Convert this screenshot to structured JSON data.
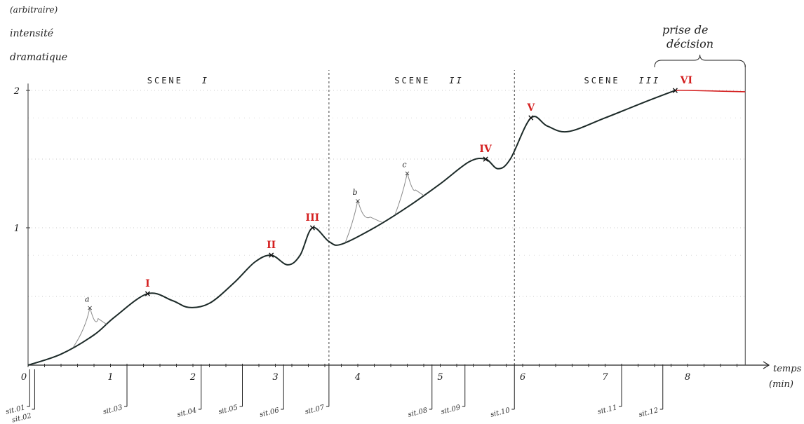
{
  "chart_data": {
    "type": "line",
    "ylabel_lines": [
      "(arbitraire)",
      "intensité",
      "dramatique"
    ],
    "xlabel": "temps",
    "xunit": "(min)",
    "xlim": [
      0,
      8.7
    ],
    "ylim": [
      0,
      2.05
    ],
    "x_ticks": [
      "0",
      "1",
      "2",
      "3",
      "4",
      "5",
      "6",
      "7",
      "8"
    ],
    "y_ticks": [
      "1",
      "2"
    ],
    "grid": "horizontal-dotted",
    "scene_boundaries": [
      3.65,
      5.9
    ],
    "scenes": [
      {
        "label": "SCENE",
        "num": "I",
        "x": 1.7
      },
      {
        "label": "SCENE",
        "num": "II",
        "x": 4.7
      },
      {
        "label": "SCENE",
        "num": "III",
        "x": 7.0
      }
    ],
    "annotation": {
      "label_lines": [
        "prise de",
        "décision"
      ],
      "x_start": 7.6,
      "x_end": 8.7
    },
    "main_curve": [
      [
        0,
        0
      ],
      [
        0.4,
        0.08
      ],
      [
        0.8,
        0.22
      ],
      [
        1.05,
        0.35
      ],
      [
        1.45,
        0.52
      ],
      [
        1.75,
        0.47
      ],
      [
        1.95,
        0.42
      ],
      [
        2.2,
        0.45
      ],
      [
        2.5,
        0.6
      ],
      [
        2.75,
        0.75
      ],
      [
        2.95,
        0.8
      ],
      [
        3.15,
        0.73
      ],
      [
        3.3,
        0.8
      ],
      [
        3.45,
        1.0
      ],
      [
        3.65,
        0.9
      ],
      [
        3.8,
        0.88
      ],
      [
        4.2,
        1.0
      ],
      [
        4.6,
        1.15
      ],
      [
        5.0,
        1.32
      ],
      [
        5.35,
        1.48
      ],
      [
        5.55,
        1.5
      ],
      [
        5.7,
        1.43
      ],
      [
        5.85,
        1.5
      ],
      [
        6.1,
        1.8
      ],
      [
        6.3,
        1.74
      ],
      [
        6.55,
        1.7
      ],
      [
        7.0,
        1.8
      ],
      [
        7.5,
        1.92
      ],
      [
        7.85,
        2.0
      ],
      [
        8.0,
        2.0
      ],
      [
        8.7,
        1.99
      ]
    ],
    "side_peaks": [
      {
        "label": "a",
        "base_x": 0.55,
        "x": 0.75,
        "y": 0.42,
        "rejoin_x": 0.95
      },
      {
        "label": "b",
        "base_x": 3.85,
        "x": 4.0,
        "y": 1.2,
        "rejoin_x": 4.3
      },
      {
        "label": "c",
        "base_x": 4.45,
        "x": 4.6,
        "y": 1.4,
        "rejoin_x": 4.8
      }
    ],
    "numbered_points": [
      {
        "label": "I",
        "x": 1.45,
        "y": 0.52
      },
      {
        "label": "II",
        "x": 2.95,
        "y": 0.8
      },
      {
        "label": "III",
        "x": 3.45,
        "y": 1.0
      },
      {
        "label": "IV",
        "x": 5.55,
        "y": 1.5
      },
      {
        "label": "V",
        "x": 6.1,
        "y": 1.8
      },
      {
        "label": "VI",
        "x": 7.85,
        "y": 2.0
      }
    ],
    "situations": [
      {
        "label": "sit.01",
        "x": 0.02
      },
      {
        "label": "sit.02",
        "x": 0.08
      },
      {
        "label": "sit.03",
        "x": 1.2
      },
      {
        "label": "sit.04",
        "x": 2.1
      },
      {
        "label": "sit.05",
        "x": 2.6
      },
      {
        "label": "sit.06",
        "x": 3.1
      },
      {
        "label": "sit.07",
        "x": 3.65
      },
      {
        "label": "sit.08",
        "x": 4.9
      },
      {
        "label": "sit.09",
        "x": 5.3
      },
      {
        "label": "sit.10",
        "x": 5.9
      },
      {
        "label": "sit.11",
        "x": 7.2
      },
      {
        "label": "sit.12",
        "x": 7.7
      }
    ],
    "colors": {
      "curve": "#1c2a28",
      "accent": "#d42020",
      "grid": "#c8c8c8"
    }
  }
}
